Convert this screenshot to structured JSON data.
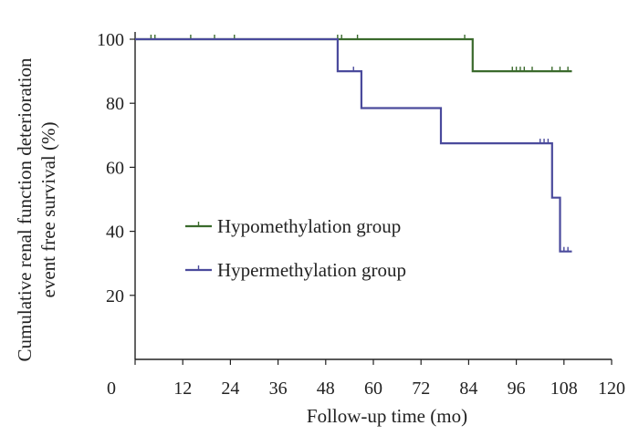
{
  "chart_data": {
    "type": "line",
    "subtype": "kaplan-meier-step",
    "xlabel": "Follow-up time (mo)",
    "ylabel_lines": [
      "Cumulative renal function deterioration",
      "event free survival (%)"
    ],
    "xlim": [
      0,
      120
    ],
    "ylim": [
      0,
      100
    ],
    "x_ticks": [
      0,
      12,
      24,
      36,
      48,
      60,
      72,
      84,
      96,
      108,
      120
    ],
    "y_ticks": [
      20,
      40,
      60,
      80,
      100
    ],
    "grid": false,
    "legend_position": "center-left",
    "series": [
      {
        "name": "Hypomethylation group",
        "color": "#3a6a2c",
        "steps": [
          [
            0,
            100
          ],
          [
            85,
            100
          ],
          [
            85,
            90
          ],
          [
            110,
            90
          ]
        ],
        "censored": [
          [
            4,
            100
          ],
          [
            5,
            100
          ],
          [
            14,
            100
          ],
          [
            20,
            100
          ],
          [
            25,
            100
          ],
          [
            51,
            100
          ],
          [
            52,
            100
          ],
          [
            56,
            100
          ],
          [
            83,
            100
          ],
          [
            95,
            90
          ],
          [
            96,
            90
          ],
          [
            97,
            90
          ],
          [
            98,
            90
          ],
          [
            100,
            90
          ],
          [
            105,
            90
          ],
          [
            107,
            90
          ],
          [
            109,
            90
          ]
        ]
      },
      {
        "name": "Hypermethylation group",
        "color": "#4a4a9c",
        "steps": [
          [
            0,
            100
          ],
          [
            51,
            100
          ],
          [
            51,
            90
          ],
          [
            57,
            90
          ],
          [
            57,
            78.5
          ],
          [
            77,
            78.5
          ],
          [
            77,
            67.5
          ],
          [
            105,
            67.5
          ],
          [
            105,
            50.5
          ],
          [
            107,
            50.5
          ],
          [
            107,
            33.7
          ],
          [
            110,
            33.7
          ]
        ],
        "censored": [
          [
            55,
            90
          ],
          [
            102,
            67.5
          ],
          [
            103,
            67.5
          ],
          [
            104,
            67.5
          ],
          [
            108,
            33.7
          ],
          [
            109,
            33.7
          ]
        ]
      }
    ]
  }
}
